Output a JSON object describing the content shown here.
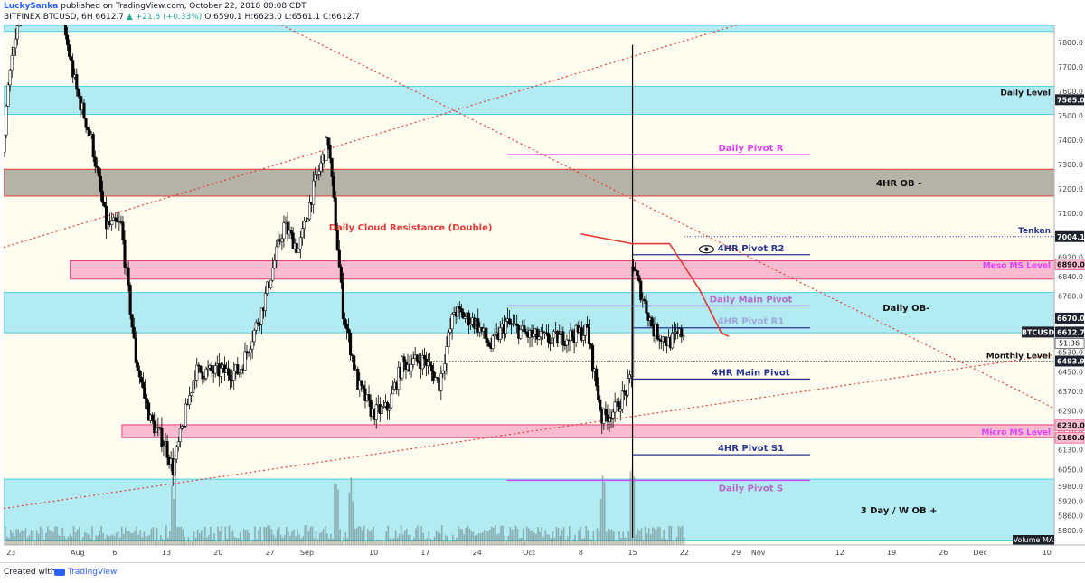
{
  "header": {
    "author": "LuckySanka",
    "published": "published on TradingView.com, October 22, 2018 00:08 CDT",
    "symbol_line": "BITFINEX:BTCUSD, 6H",
    "last": "6612.7",
    "change": "+21.8 (+0.33%)",
    "ohlc": "O:6590.1 H:6623.0 L:6561.1 C:6612.7"
  },
  "footer": {
    "created": "Created with",
    "brand": "TradingView"
  },
  "colors": {
    "cream": "#fffdf0",
    "cyan_zone": "#b2ebf2",
    "pink_zone": "#f8bbd0",
    "gray_zone": "#b5b3a7",
    "red": "#e53935",
    "magenta": "#e040fb",
    "navy": "#283593",
    "candle_up": "#ffffff",
    "candle_down": "#000000"
  },
  "chart_data": {
    "type": "candlestick",
    "symbol": "BITFINEX:BTCUSD",
    "timeframe": "6H",
    "y_range": [
      5740,
      7870
    ],
    "x_range": [
      "2018-07-22",
      "2018-12-11"
    ],
    "y_ticks": [
      5800.0,
      5860.0,
      5920.0,
      5980.0,
      6050.0,
      6130.0,
      6210.0,
      6290.0,
      6370.0,
      6450.0,
      6530.0,
      6610.0,
      6680.0,
      6760.0,
      6840.0,
      6920.0,
      7010.0,
      7100.0,
      7200.0,
      7300.0,
      7400.0,
      7500.0,
      7600.0,
      7700.0,
      7800.0
    ],
    "x_ticks": [
      {
        "label": "23",
        "date": "2018-07-23"
      },
      {
        "label": "Aug",
        "date": "2018-08-01"
      },
      {
        "label": "6",
        "date": "2018-08-06"
      },
      {
        "label": "13",
        "date": "2018-08-13"
      },
      {
        "label": "20",
        "date": "2018-08-20"
      },
      {
        "label": "27",
        "date": "2018-08-27"
      },
      {
        "label": "Sep",
        "date": "2018-09-01"
      },
      {
        "label": "10",
        "date": "2018-09-10"
      },
      {
        "label": "17",
        "date": "2018-09-17"
      },
      {
        "label": "24",
        "date": "2018-09-24"
      },
      {
        "label": "Oct",
        "date": "2018-10-01"
      },
      {
        "label": "8",
        "date": "2018-10-08"
      },
      {
        "label": "15",
        "date": "2018-10-15"
      },
      {
        "label": "22",
        "date": "2018-10-22"
      },
      {
        "label": "29",
        "date": "2018-10-29"
      },
      {
        "label": "Nov",
        "date": "2018-11-01"
      },
      {
        "label": "12",
        "date": "2018-11-12"
      },
      {
        "label": "19",
        "date": "2018-11-19"
      },
      {
        "label": "26",
        "date": "2018-11-26"
      },
      {
        "label": "Dec",
        "date": "2018-12-01"
      },
      {
        "label": "10",
        "date": "2018-12-10"
      }
    ],
    "price_path": [
      {
        "date": "2018-07-22",
        "price": 7350
      },
      {
        "date": "2018-07-23",
        "price": 7720
      },
      {
        "date": "2018-07-25",
        "price": 7950
      },
      {
        "date": "2018-07-28",
        "price": 8150
      },
      {
        "date": "2018-07-30",
        "price": 7900
      },
      {
        "date": "2018-08-01",
        "price": 7600
      },
      {
        "date": "2018-08-03",
        "price": 7400
      },
      {
        "date": "2018-08-05",
        "price": 7050
      },
      {
        "date": "2018-08-07",
        "price": 7050
      },
      {
        "date": "2018-08-09",
        "price": 6500
      },
      {
        "date": "2018-08-11",
        "price": 6250
      },
      {
        "date": "2018-08-13",
        "price": 6150
      },
      {
        "date": "2018-08-14",
        "price": 6050
      },
      {
        "date": "2018-08-17",
        "price": 6450
      },
      {
        "date": "2018-08-20",
        "price": 6450
      },
      {
        "date": "2018-08-23",
        "price": 6450
      },
      {
        "date": "2018-08-26",
        "price": 6700
      },
      {
        "date": "2018-08-29",
        "price": 7050
      },
      {
        "date": "2018-08-31",
        "price": 6950
      },
      {
        "date": "2018-09-02",
        "price": 7200
      },
      {
        "date": "2018-09-04",
        "price": 7400
      },
      {
        "date": "2018-09-06",
        "price": 6700
      },
      {
        "date": "2018-09-08",
        "price": 6400
      },
      {
        "date": "2018-09-10",
        "price": 6280
      },
      {
        "date": "2018-09-12",
        "price": 6300
      },
      {
        "date": "2018-09-14",
        "price": 6480
      },
      {
        "date": "2018-09-17",
        "price": 6500
      },
      {
        "date": "2018-09-19",
        "price": 6400
      },
      {
        "date": "2018-09-21",
        "price": 6700
      },
      {
        "date": "2018-09-24",
        "price": 6650
      },
      {
        "date": "2018-09-26",
        "price": 6550
      },
      {
        "date": "2018-09-28",
        "price": 6650
      },
      {
        "date": "2018-10-01",
        "price": 6600
      },
      {
        "date": "2018-10-04",
        "price": 6580
      },
      {
        "date": "2018-10-07",
        "price": 6600
      },
      {
        "date": "2018-10-09",
        "price": 6620
      },
      {
        "date": "2018-10-11",
        "price": 6260
      },
      {
        "date": "2018-10-13",
        "price": 6300
      },
      {
        "date": "2018-10-15",
        "price": 6420
      },
      {
        "date": "2018-10-15",
        "price": 6900
      },
      {
        "date": "2018-10-16",
        "price": 6800
      },
      {
        "date": "2018-10-18",
        "price": 6620
      },
      {
        "date": "2018-10-20",
        "price": 6570
      },
      {
        "date": "2018-10-22",
        "price": 6612
      }
    ],
    "volume_spike_dates": [
      "2018-08-14",
      "2018-09-05",
      "2018-09-07",
      "2018-10-11",
      "2018-10-15"
    ],
    "zones": [
      {
        "name": "top-cyan-band",
        "low": 7845,
        "high": 7870,
        "color": "cyan"
      },
      {
        "name": "Daily Level",
        "low": 7505,
        "high": 7620,
        "color": "cyan",
        "label": "Daily Level"
      },
      {
        "name": "4HR OB -",
        "low": 7170,
        "high": 7280,
        "color": "gray",
        "label": "4HR OB -"
      },
      {
        "name": "Meso MS Level",
        "low": 6830,
        "high": 6905,
        "color": "pink",
        "label": "Meso MS Level"
      },
      {
        "name": "Daily OB-",
        "low": 6610,
        "high": 6775,
        "color": "cyan",
        "label": "Daily OB-"
      },
      {
        "name": "Micro MS Level",
        "low": 6180,
        "high": 6233,
        "color": "pink",
        "label": "Micro MS Level"
      },
      {
        "name": "3 Day / W OB +",
        "low": 5760,
        "high": 6010,
        "color": "cyan",
        "label": "3 Day / W OB +"
      }
    ],
    "levels": [
      {
        "label": "Daily Pivot R",
        "price": 7340,
        "color": "magenta",
        "from": "2018-09-28",
        "to": "2018-11-08"
      },
      {
        "label": "4HR Pivot R2",
        "price": 6930,
        "color": "navy",
        "from": "2018-10-15",
        "to": "2018-11-08"
      },
      {
        "label": "Daily Main Pivot",
        "price": 6720,
        "color": "magenta",
        "from": "2018-09-28",
        "to": "2018-11-08"
      },
      {
        "label": "4HR Pivot R1",
        "price": 6630,
        "color": "navy",
        "from": "2018-10-15",
        "to": "2018-11-08"
      },
      {
        "label": "4HR Main Pivot",
        "price": 6420,
        "color": "navy",
        "from": "2018-10-15",
        "to": "2018-11-08"
      },
      {
        "label": "4HR Pivot S1",
        "price": 6110,
        "color": "navy",
        "from": "2018-10-15",
        "to": "2018-11-08"
      },
      {
        "label": "Daily Pivot S",
        "price": 6005,
        "color": "magenta",
        "from": "2018-09-28",
        "to": "2018-11-08"
      },
      {
        "label": "Tenkan",
        "price": 7004.1,
        "color": "navy",
        "from": "2018-10-22",
        "to": "2018-12-11",
        "style": "dotted"
      },
      {
        "label": "Monthly Level",
        "price": 6493.9,
        "color": "black",
        "from": "2018-09-17",
        "to": "2018-12-11",
        "style": "dotted"
      }
    ],
    "trendlines": [
      {
        "from": {
          "date": "2018-07-22",
          "price": 6960
        },
        "to": {
          "date": "2018-10-30",
          "price": 7880
        },
        "style": "dotted",
        "color": "red"
      },
      {
        "from": {
          "date": "2018-07-22",
          "price": 5890
        },
        "to": {
          "date": "2018-12-11",
          "price": 6520
        },
        "style": "dotted",
        "color": "red"
      },
      {
        "from": {
          "date": "2018-08-28",
          "price": 7880
        },
        "to": {
          "date": "2018-12-11",
          "price": 6300
        },
        "style": "dotted",
        "color": "red"
      }
    ],
    "cloud_curve": {
      "label": "Daily Cloud Resistance (Double)",
      "points": [
        {
          "date": "2018-10-08",
          "price": 7015
        },
        {
          "date": "2018-10-15",
          "price": 6975
        },
        {
          "date": "2018-10-20",
          "price": 6975
        },
        {
          "date": "2018-10-24",
          "price": 6790
        },
        {
          "date": "2018-10-27",
          "price": 6610
        },
        {
          "date": "2018-10-28",
          "price": 6595
        }
      ]
    },
    "price_labels": [
      {
        "value": "7565.0",
        "dark": true
      },
      {
        "value": "7004.1",
        "dark": true
      },
      {
        "value": "6890.0",
        "dark": false,
        "pink": true
      },
      {
        "value": "6670.0",
        "dark": true
      },
      {
        "value": "6612.7",
        "dark": true
      },
      {
        "value": "6493.9",
        "dark": true
      },
      {
        "value": "6230.0",
        "dark": false,
        "pink": true
      },
      {
        "value": "6180.0",
        "dark": false,
        "pink": true
      }
    ],
    "symbol_tag": "BTCUSD",
    "countdown": "51:36",
    "volume_label": "Volume MA",
    "eye_annotation_level": "4HR Pivot R2"
  }
}
